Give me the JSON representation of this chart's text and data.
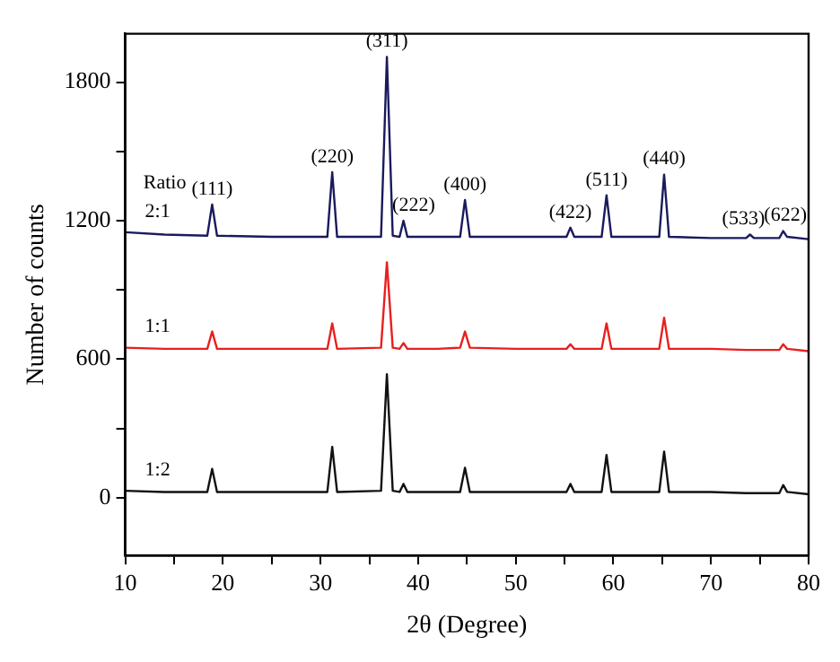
{
  "chart_data": {
    "type": "line",
    "xlabel": "2θ (Degree)",
    "ylabel": "Number of counts",
    "x": [
      10,
      14,
      18.4,
      18.9,
      19.4,
      25,
      30.7,
      31.2,
      31.7,
      36.2,
      36.8,
      37.4,
      38.1,
      38.5,
      38.9,
      42,
      44.3,
      44.8,
      45.3,
      50,
      55.2,
      55.6,
      56.0,
      58.8,
      59.3,
      59.8,
      62,
      64.7,
      65.2,
      65.7,
      70,
      73.6,
      74.0,
      74.4,
      77.0,
      77.4,
      77.8,
      80
    ],
    "series": [
      {
        "name": "2:1",
        "color": "#1a1a5e",
        "values": [
          1150,
          1140,
          1135,
          1270,
          1135,
          1130,
          1130,
          1410,
          1130,
          1130,
          1910,
          1135,
          1130,
          1200,
          1130,
          1130,
          1130,
          1290,
          1130,
          1130,
          1130,
          1170,
          1130,
          1130,
          1310,
          1130,
          1130,
          1130,
          1400,
          1130,
          1125,
          1125,
          1140,
          1125,
          1125,
          1155,
          1130,
          1120
        ]
      },
      {
        "name": "1:1",
        "color": "#e8201e",
        "values": [
          650,
          645,
          645,
          720,
          645,
          645,
          645,
          755,
          645,
          650,
          1020,
          650,
          645,
          670,
          645,
          645,
          650,
          720,
          650,
          645,
          645,
          665,
          645,
          645,
          755,
          645,
          645,
          645,
          780,
          645,
          645,
          640,
          640,
          640,
          640,
          665,
          645,
          635
        ]
      },
      {
        "name": "1:2",
        "color": "#111111",
        "values": [
          30,
          25,
          25,
          125,
          25,
          25,
          25,
          220,
          25,
          30,
          535,
          30,
          25,
          60,
          25,
          25,
          25,
          130,
          25,
          25,
          25,
          60,
          25,
          25,
          185,
          25,
          25,
          25,
          200,
          25,
          25,
          20,
          20,
          20,
          20,
          55,
          25,
          15
        ]
      }
    ],
    "annotations": [
      "Ratio",
      {
        "text": "(111)",
        "x": 18.9,
        "y": 1270
      },
      {
        "text": "(220)",
        "x": 31.2,
        "y": 1410
      },
      {
        "text": "(311)",
        "x": 36.8,
        "y": 1910
      },
      {
        "text": "(222)",
        "x": 38.5,
        "y": 1200
      },
      {
        "text": "(400)",
        "x": 44.8,
        "y": 1290
      },
      {
        "text": "(422)",
        "x": 55.6,
        "y": 1170
      },
      {
        "text": "(511)",
        "x": 59.3,
        "y": 1310
      },
      {
        "text": "(440)",
        "x": 65.2,
        "y": 1400
      },
      {
        "text": "(533)",
        "x": 74.0,
        "y": 1140
      },
      {
        "text": "(622)",
        "x": 77.4,
        "y": 1155
      }
    ],
    "xlim": [
      10,
      80
    ],
    "ylim": [
      -250,
      2010
    ],
    "xticks": [
      10,
      {
        "value": 15,
        "label": null
      },
      20,
      {
        "value": 25,
        "label": null
      },
      30,
      {
        "value": 35,
        "label": null
      },
      40,
      {
        "value": 45,
        "label": null
      },
      50,
      {
        "value": 55,
        "label": null
      },
      60,
      {
        "value": 65,
        "label": null
      },
      70,
      {
        "value": 75,
        "label": null
      },
      80
    ],
    "yticks": [
      0,
      {
        "value": 300,
        "label": null
      },
      600,
      {
        "value": 900,
        "label": null
      },
      1200,
      {
        "value": 1500,
        "label": null
      },
      1800
    ],
    "grid": false,
    "legend": false,
    "marker": "none",
    "line_style": "solid"
  }
}
